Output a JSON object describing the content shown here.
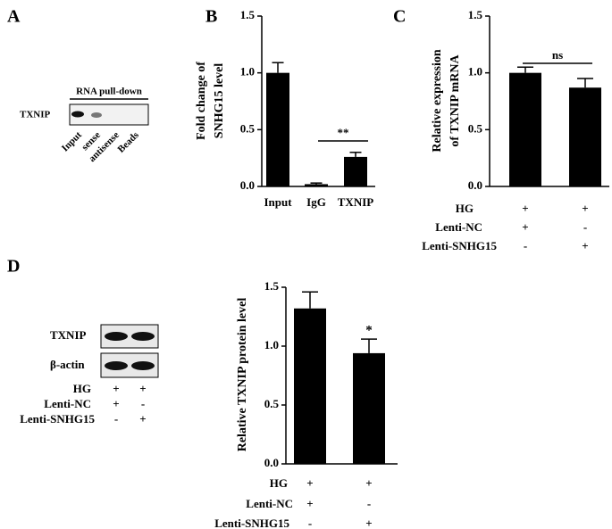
{
  "panel_labels": [
    "A",
    "B",
    "C",
    "D"
  ],
  "blot_a": {
    "header": "RNA pull-down",
    "row": "TXNIP",
    "lanes": [
      "Input",
      "sense",
      "antisense",
      "Beads"
    ]
  },
  "blot_d": {
    "rows": [
      "TXNIP",
      "β-actin"
    ],
    "conditions": [
      {
        "name": "HG",
        "signs": [
          "+",
          "+"
        ]
      },
      {
        "name": "Lenti-NC",
        "signs": [
          "+",
          "-"
        ]
      },
      {
        "name": "Lenti-SNHG15",
        "signs": [
          "-",
          "+"
        ]
      }
    ]
  },
  "chart_data": [
    {
      "type": "bar",
      "y_label": [
        "Fold change of",
        "SNHG15 level"
      ],
      "categories": [
        "Input",
        "IgG",
        "TXNIP"
      ],
      "values": [
        1.0,
        0.02,
        0.26
      ],
      "errors": [
        0.09,
        0.01,
        0.04
      ],
      "color": "#000000",
      "ylim": [
        0,
        1.5
      ],
      "yticks": [
        {
          "value": 0,
          "label": "0.0"
        },
        {
          "value": 0.5,
          "label": "0.5"
        },
        {
          "value": 1,
          "label": "1.0"
        },
        {
          "value": 1.5,
          "label": "1.5"
        }
      ],
      "annotation": "**"
    },
    {
      "type": "bar",
      "y_label": [
        "Relative expression",
        "of TXNIP mRNA"
      ],
      "categories": [
        null,
        null
      ],
      "values": [
        1.0,
        0.87
      ],
      "errors": [
        0.05,
        0.08
      ],
      "color": "#000000",
      "ylim": [
        0,
        1.5
      ],
      "yticks": [
        {
          "value": 0,
          "label": "0.0"
        },
        {
          "value": 0.5,
          "label": "0.5"
        },
        {
          "value": 1,
          "label": "1.0"
        },
        {
          "value": 1.5,
          "label": "1.5"
        }
      ],
      "annotation": "ns",
      "conditions": [
        {
          "name": "HG",
          "signs": [
            "+",
            "+"
          ]
        },
        {
          "name": "Lenti-NC",
          "signs": [
            "+",
            "-"
          ]
        },
        {
          "name": "Lenti-SNHG15",
          "signs": [
            "-",
            "+"
          ]
        }
      ]
    },
    {
      "type": "bar",
      "y_label": [
        "Relative  TXNIP protein level"
      ],
      "categories": [
        null,
        null
      ],
      "values": [
        1.32,
        0.94
      ],
      "errors": [
        0.14,
        0.12
      ],
      "color": "#000000",
      "ylim": [
        0,
        1.5
      ],
      "yticks": [
        {
          "value": 0,
          "label": "0.0"
        },
        {
          "value": 0.5,
          "label": "0.5"
        },
        {
          "value": 1,
          "label": "1.0"
        },
        {
          "value": 1.5,
          "label": "1.5"
        }
      ],
      "annotation": "*",
      "conditions": [
        {
          "name": "HG",
          "signs": [
            "+",
            "+"
          ]
        },
        {
          "name": "Lenti-NC",
          "signs": [
            "+",
            "-"
          ]
        },
        {
          "name": "Lenti-SNHG15",
          "signs": [
            "-",
            "+"
          ]
        }
      ]
    }
  ]
}
